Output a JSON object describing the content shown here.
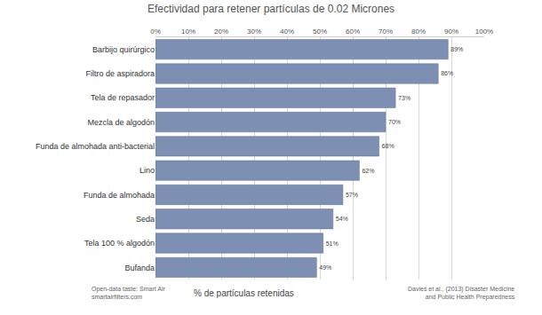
{
  "chart_data": {
    "type": "bar",
    "orientation": "horizontal",
    "title": "Efectividad para retener partículas de 0.02 Micrones",
    "xlabel": "% de partículas retenidas",
    "categories": [
      "Barbijo quirúrgico",
      "Filtro de aspiradora",
      "Tela de repasador",
      "Mezcla de algodón",
      "Funda de almohada anti-bacterial",
      "Lino",
      "Funda de almohada",
      "Seda",
      "Tela 100 % algodón",
      "Bufanda"
    ],
    "values": [
      89,
      86,
      73,
      70,
      68,
      62,
      57,
      54,
      51,
      49
    ],
    "value_labels": [
      "89%",
      "86%",
      "73%",
      "70%",
      "68%",
      "62%",
      "57%",
      "54%",
      "51%",
      "49%"
    ],
    "data_labels": true,
    "color": "#7d90b3",
    "xlim": [
      0,
      100
    ],
    "xticks": [
      {
        "value": 0,
        "label": "0%"
      },
      {
        "value": 10,
        "label": "10%"
      },
      {
        "value": 20,
        "label": "20%"
      },
      {
        "value": 30,
        "label": "30%"
      },
      {
        "value": 40,
        "label": "40%"
      },
      {
        "value": 50,
        "label": "50%"
      },
      {
        "value": 60,
        "label": "60%"
      },
      {
        "value": 70,
        "label": "70%"
      },
      {
        "value": 80,
        "label": "80%"
      },
      {
        "value": 90,
        "label": "90%"
      },
      {
        "value": 100,
        "label": "100%"
      }
    ],
    "grid": true,
    "annotations": [
      "Open-data taste: Smart Air\nsmartairfilters.com",
      "Davies et al., (2013) Disaster Medicine\nand Public Health Preparedness"
    ]
  }
}
